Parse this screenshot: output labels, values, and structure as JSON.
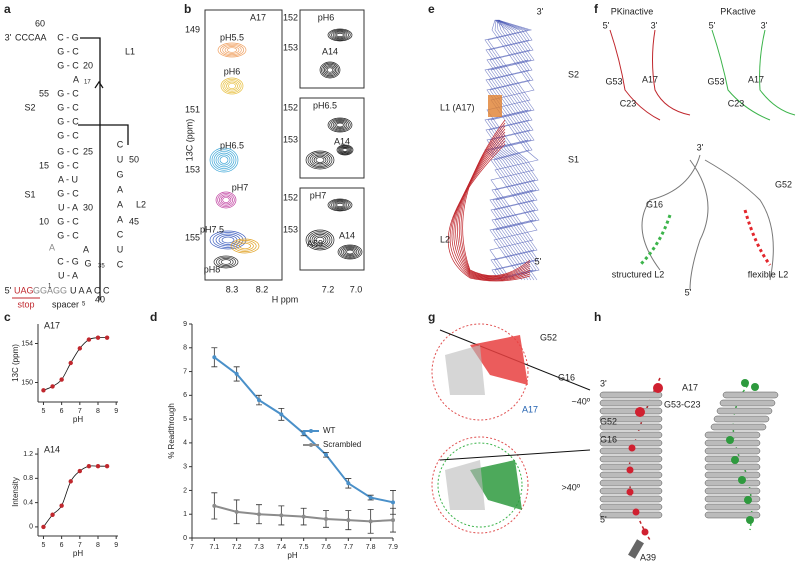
{
  "panel_labels": [
    "a",
    "b",
    "c",
    "d",
    "e",
    "f",
    "g",
    "h"
  ],
  "panel_a": {
    "labels": [
      "60",
      "3'",
      "CCCAA",
      "C - G",
      "G - C",
      "G - C",
      "20",
      "A",
      "17",
      "55",
      "G - C",
      "G - C",
      "G - C",
      "G - C",
      "L1",
      "S2",
      "G - C",
      "25",
      "15",
      "G - C",
      "A - U",
      "G - C",
      "U - A",
      "30",
      "10",
      "G - C",
      "G - C",
      "A",
      "A",
      "S1",
      "C - G",
      "G",
      "35",
      "U - A",
      "5'",
      "UAG",
      "GGAGG",
      "1",
      "U A A C C",
      "40",
      "spacer",
      "5",
      "stop",
      "C",
      "U",
      "50",
      "G",
      "A",
      "A",
      "L2",
      "A",
      "45",
      "C",
      "U",
      "C"
    ]
  },
  "panel_b": {
    "labels": [
      "A17",
      "pH5.5",
      "pH6",
      "pH6.5",
      "pH7",
      "pH7.5",
      "pH8",
      "149",
      "151",
      "153",
      "155",
      "8.3",
      "8.2",
      "13C (ppm)",
      "H ppm",
      "152",
      "pH6",
      "153",
      "A14",
      "152",
      "pH6.5",
      "153",
      "A14",
      "152",
      "pH7",
      "153",
      "A59",
      "A14",
      "7.2",
      "7.0"
    ]
  },
  "panel_e": {
    "labels": [
      "3'",
      "L1 (A17)",
      "S2",
      "S1",
      "L2",
      "5'"
    ]
  },
  "panel_f": {
    "labels": [
      "PKinactive",
      "PKactive",
      "5'",
      "3'",
      "G53",
      "A17",
      "C23",
      "5'",
      "3'",
      "G53",
      "A17",
      "C23",
      "3'",
      "G52",
      "G16",
      "structured L2",
      "flexible L2",
      "5'"
    ]
  },
  "panel_g": {
    "labels": [
      "G52",
      "G16",
      "A17",
      "~40º",
      ">40º"
    ]
  },
  "panel_h": {
    "labels": [
      "3'",
      "A17",
      "G53-C23",
      "G52",
      "G16",
      "5'",
      "A39"
    ]
  },
  "chart_data": [
    {
      "type": "scatter",
      "title": "A17",
      "ylabel": "13C (ppm)",
      "xlabel": "pH",
      "x": [
        5,
        5.5,
        6,
        6.5,
        7,
        7.5,
        8,
        8.5
      ],
      "series": [
        {
          "color": "#c0272d",
          "values": [
            149.2,
            149.6,
            150.3,
            152.0,
            153.5,
            154.4,
            154.6,
            154.6
          ]
        }
      ],
      "xlim": [
        4.7,
        9.1
      ],
      "xticks": [
        5,
        6,
        7,
        8,
        9
      ],
      "ylim": [
        148,
        156
      ],
      "yticks": [
        150,
        154
      ]
    },
    {
      "type": "scatter",
      "title": "A14",
      "ylabel": "Intensity",
      "xlabel": "pH",
      "x": [
        5,
        5.5,
        6,
        6.5,
        7,
        7.5,
        8,
        8.5
      ],
      "series": [
        {
          "color": "#c0272d",
          "values": [
            0.0,
            0.2,
            0.35,
            0.75,
            0.92,
            1.0,
            1.0,
            1.0
          ]
        }
      ],
      "xlim": [
        4.7,
        9.1
      ],
      "xticks": [
        5,
        6,
        7,
        8,
        9
      ],
      "ylim": [
        -0.15,
        1.3
      ],
      "yticks": [
        0,
        0.4,
        0.8,
        1.2
      ]
    },
    {
      "type": "line",
      "ylabel": "% Readthrough",
      "xlabel": "pH",
      "x": [
        7.1,
        7.2,
        7.3,
        7.4,
        7.5,
        7.6,
        7.7,
        7.8,
        7.9
      ],
      "series": [
        {
          "name": "WT",
          "color": "#4a90c9",
          "values": [
            7.6,
            6.9,
            5.8,
            5.2,
            4.4,
            3.5,
            2.3,
            1.7,
            1.5
          ],
          "errors": [
            0.4,
            0.3,
            0.2,
            0.25,
            0.1,
            0.1,
            0.2,
            0.1,
            0.5
          ]
        },
        {
          "name": "Scrambled",
          "color": "#8c8c8c",
          "values": [
            1.35,
            1.1,
            1.0,
            0.95,
            0.9,
            0.8,
            0.75,
            0.7,
            0.75
          ],
          "errors": [
            0.55,
            0.5,
            0.4,
            0.4,
            0.35,
            0.35,
            0.4,
            0.5,
            0.5
          ]
        }
      ],
      "xlim": [
        7,
        7.9
      ],
      "xticks": [
        7,
        7.1,
        7.2,
        7.3,
        7.4,
        7.5,
        7.6,
        7.7,
        7.8,
        7.9
      ],
      "ylim": [
        0,
        9
      ],
      "yticks": [
        0,
        1,
        2,
        3,
        4,
        5,
        6,
        7,
        8,
        9
      ],
      "legend": "right"
    }
  ]
}
